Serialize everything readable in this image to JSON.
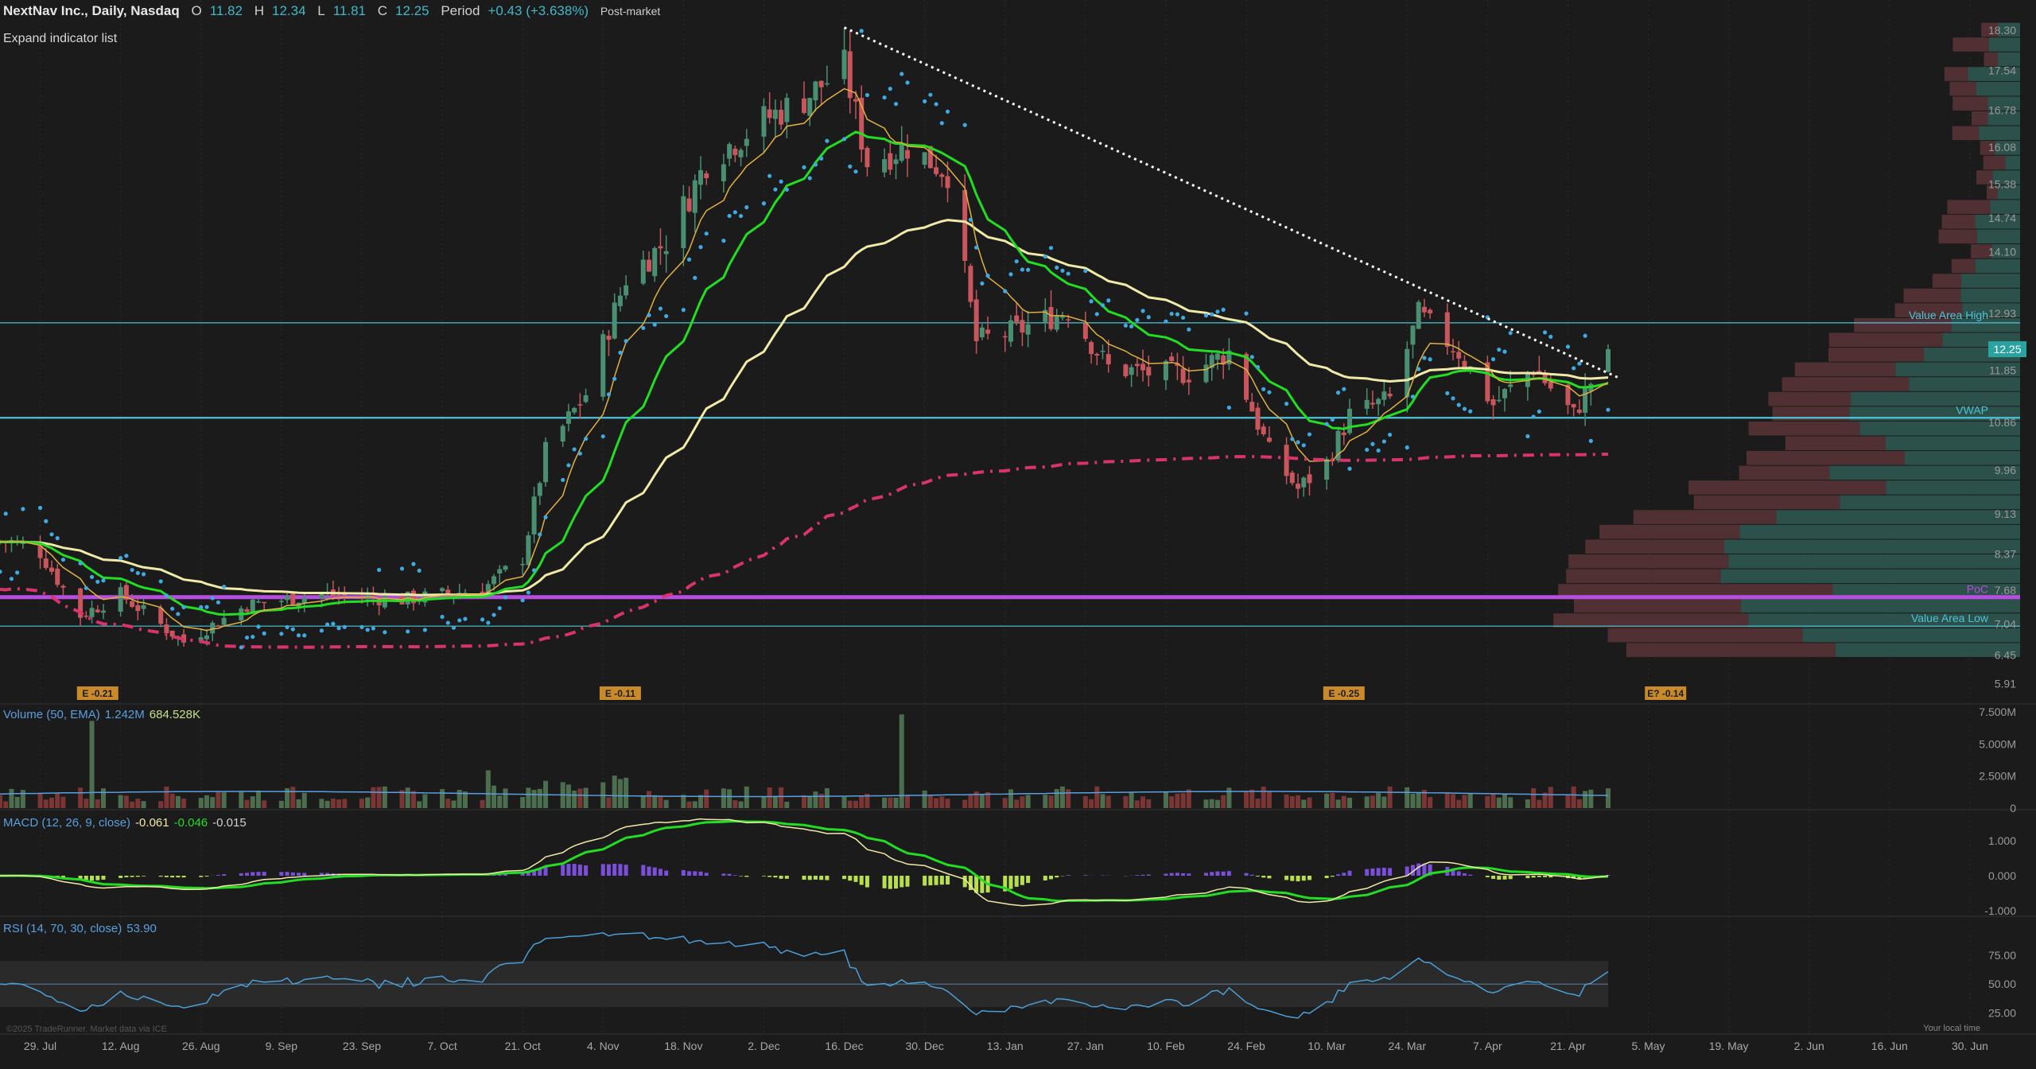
{
  "header": {
    "symbol": "NextNav Inc., Daily, Nasdaq",
    "open_label": "O",
    "open": "11.82",
    "high_label": "H",
    "high": "12.34",
    "low_label": "L",
    "low": "11.81",
    "close_label": "C",
    "close": "12.25",
    "period_label": "Period",
    "period_change": "+0.43 (+3.638%)",
    "session": "Post-market"
  },
  "expand_indicator_list": "Expand indicator list",
  "volume_pane": {
    "title": "Volume (50, EMA)",
    "v1": "1.242M",
    "v2": "684.528K"
  },
  "macd_pane": {
    "title": "MACD (12, 26, 9, close)",
    "v1": "-0.061",
    "v2": "-0.046",
    "v3": "-0.015"
  },
  "rsi_pane": {
    "title": "RSI (14, 70, 30, close)",
    "v1": "53.90"
  },
  "watermark": "©2025 TradeRunner. Market data via ICE",
  "local_time_note": "Your local time",
  "price_axis_ticks": [
    "18.30",
    "17.54",
    "16.78",
    "16.08",
    "15.38",
    "14.74",
    "14.10",
    "12.93",
    "11.85",
    "10.86",
    "9.96",
    "9.13",
    "8.37",
    "7.68",
    "7.04",
    "6.45",
    "5.91"
  ],
  "last_price_tag": "12.25",
  "profile_labels": {
    "vah": "Value Area High",
    "vwap": "VWAP",
    "poc": "PoC",
    "val": "Value Area Low"
  },
  "earnings_markers": [
    "E -0.21",
    "E -0.11",
    "E -0.25",
    "E? -0.14"
  ],
  "volume_axis_ticks": [
    "7.500M",
    "5.000M",
    "2.500M",
    "0"
  ],
  "macd_axis_ticks": [
    "1.000",
    "0.000",
    "-1.000"
  ],
  "rsi_axis_ticks": [
    "75.00",
    "50.00",
    "25.00"
  ],
  "x_axis_ticks": [
    "29. Jul",
    "12. Aug",
    "26. Aug",
    "9. Sep",
    "23. Sep",
    "7. Oct",
    "21. Oct",
    "4. Nov",
    "18. Nov",
    "2. Dec",
    "16. Dec",
    "30. Dec",
    "13. Jan",
    "27. Jan",
    "10. Feb",
    "24. Feb",
    "10. Mar",
    "24. Mar",
    "7. Apr",
    "21. Apr",
    "5. May",
    "19. May",
    "2. Jun",
    "16. Jun",
    "30. Jun"
  ],
  "colors": {
    "bg": "#1b1b1b",
    "up": "#4a8f72",
    "down": "#c9555d",
    "ema_fast": "#e0b040",
    "ema_mid": "#22dd22",
    "ema_slow": "#f0eaa8",
    "sar": "#3fa9e0",
    "vwap_long": "#d9336e",
    "value_line": "#4fc3d9",
    "poc": "#b64fe0",
    "macd_hist_pos": "#7a4fd9",
    "macd_hist_neg": "#b8e04a",
    "rsi": "#4a9fd6",
    "text": "#c8c8c8"
  },
  "chart_data": {
    "type": "candlestick",
    "title": "NextNav Inc., Daily, Nasdaq",
    "price_ylim": [
      5.6,
      18.6
    ],
    "approx_closes": [
      {
        "date": "2024-07-24",
        "close": 8.6
      },
      {
        "date": "2024-07-29",
        "close": 8.4
      },
      {
        "date": "2024-08-05",
        "close": 7.2
      },
      {
        "date": "2024-08-12",
        "close": 7.6
      },
      {
        "date": "2024-08-23",
        "close": 6.7
      },
      {
        "date": "2024-09-03",
        "close": 7.4
      },
      {
        "date": "2024-09-16",
        "close": 7.6
      },
      {
        "date": "2024-09-30",
        "close": 7.5
      },
      {
        "date": "2024-10-14",
        "close": 7.7
      },
      {
        "date": "2024-10-21",
        "close": 8.3
      },
      {
        "date": "2024-10-25",
        "close": 10.3
      },
      {
        "date": "2024-11-01",
        "close": 11.4
      },
      {
        "date": "2024-11-08",
        "close": 13.6
      },
      {
        "date": "2024-11-15",
        "close": 14.3
      },
      {
        "date": "2024-11-22",
        "close": 15.8
      },
      {
        "date": "2024-12-02",
        "close": 16.6
      },
      {
        "date": "2024-12-09",
        "close": 17.0
      },
      {
        "date": "2024-12-16",
        "close": 17.6
      },
      {
        "date": "2024-12-20",
        "close": 15.8
      },
      {
        "date": "2024-12-27",
        "close": 16.1
      },
      {
        "date": "2025-01-03",
        "close": 15.6
      },
      {
        "date": "2025-01-08",
        "close": 12.4
      },
      {
        "date": "2025-01-15",
        "close": 12.6
      },
      {
        "date": "2025-01-24",
        "close": 13.0
      },
      {
        "date": "2025-01-31",
        "close": 11.9
      },
      {
        "date": "2025-02-07",
        "close": 11.8
      },
      {
        "date": "2025-02-14",
        "close": 11.8
      },
      {
        "date": "2025-02-21",
        "close": 12.2
      },
      {
        "date": "2025-02-28",
        "close": 10.3
      },
      {
        "date": "2025-03-05",
        "close": 9.6
      },
      {
        "date": "2025-03-10",
        "close": 10.1
      },
      {
        "date": "2025-03-14",
        "close": 11.0
      },
      {
        "date": "2025-03-21",
        "close": 11.3
      },
      {
        "date": "2025-03-26",
        "close": 12.9
      },
      {
        "date": "2025-04-02",
        "close": 12.2
      },
      {
        "date": "2025-04-08",
        "close": 11.2
      },
      {
        "date": "2025-04-15",
        "close": 11.9
      },
      {
        "date": "2025-04-22",
        "close": 11.0
      },
      {
        "date": "2025-04-28",
        "close": 12.25
      }
    ],
    "value_area_high": 12.75,
    "vwap": 10.95,
    "poc": 7.55,
    "value_area_low": 7.0,
    "trendline": {
      "from": {
        "date": "2024-12-16",
        "price": 18.35
      },
      "to": {
        "date": "2025-04-30",
        "price": 11.7
      }
    },
    "rsi_levels": [
      30,
      70
    ],
    "legend": "none",
    "grid": false
  }
}
